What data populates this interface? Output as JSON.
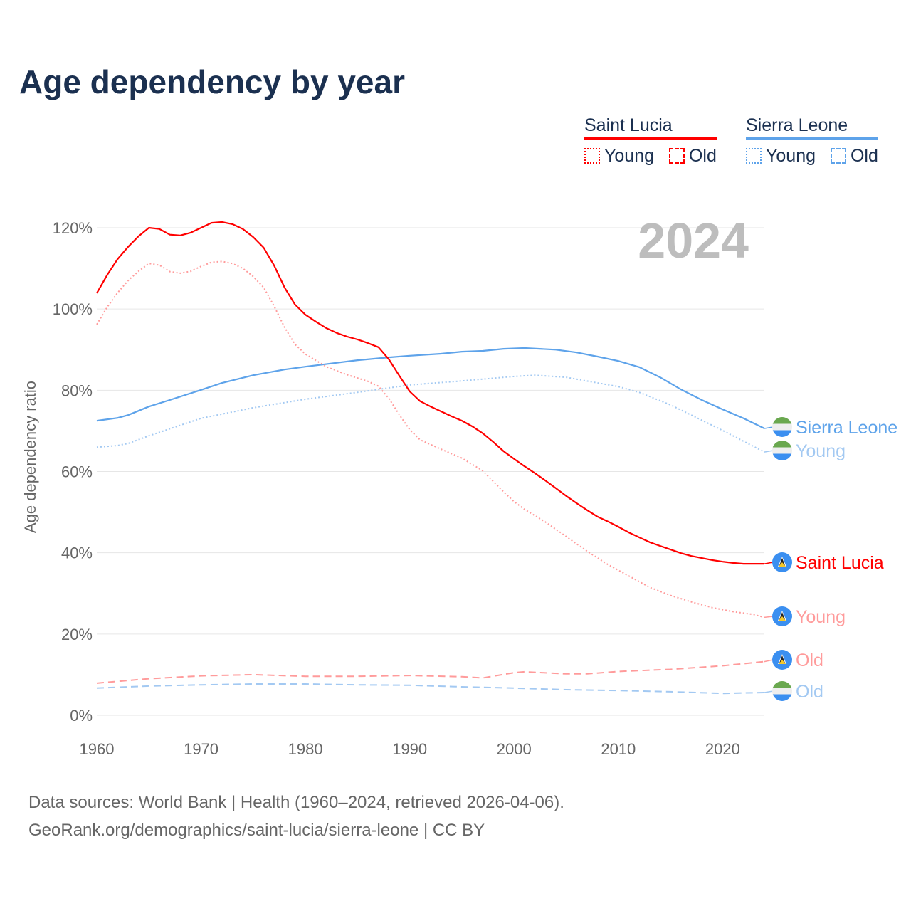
{
  "title": "Age dependency by year",
  "legend": {
    "groups": [
      {
        "name": "Saint Lucia",
        "color": "#ff0000",
        "items": [
          "Young",
          "Old"
        ]
      },
      {
        "name": "Sierra Leone",
        "color": "#5ea3ea",
        "items": [
          "Young",
          "Old"
        ]
      }
    ]
  },
  "source": {
    "line1": "Data sources: World Bank | Health (1960–2024, retrieved 2026-04-06).",
    "line2": "GeoRank.org/demographics/saint-lucia/sierra-leone | CC BY"
  },
  "chart_data": {
    "type": "line",
    "year_label": "2024",
    "ylabel": "Age dependency ratio",
    "xlim": [
      1960,
      2024
    ],
    "ylim": [
      0,
      120
    ],
    "xticks": [
      1960,
      1970,
      1980,
      1990,
      2000,
      2010,
      2020
    ],
    "yticks": [
      0,
      20,
      40,
      60,
      80,
      100,
      120
    ],
    "ytick_labels": [
      "0%",
      "20%",
      "40%",
      "60%",
      "80%",
      "100%",
      "120%"
    ],
    "grid": true,
    "series": [
      {
        "name": "Sierra Leone",
        "end_label": "Sierra Leone",
        "country": "sierra-leone",
        "color": "#5ea3ea",
        "dash": "solid",
        "x": [
          1960,
          1962,
          1963,
          1965,
          1967,
          1970,
          1972,
          1975,
          1978,
          1980,
          1985,
          1988,
          1990,
          1993,
          1995,
          1997,
          1999,
          2001,
          2004,
          2006,
          2008,
          2010,
          2012,
          2014,
          2016,
          2018,
          2020,
          2022,
          2024
        ],
        "y": [
          72.5,
          73.2,
          73.9,
          76.0,
          77.6,
          80.1,
          81.8,
          83.7,
          85.1,
          85.8,
          87.4,
          88.1,
          88.5,
          89.0,
          89.5,
          89.7,
          90.2,
          90.4,
          90.0,
          89.3,
          88.3,
          87.2,
          85.7,
          83.2,
          80.2,
          77.6,
          75.3,
          73.1,
          70.6
        ]
      },
      {
        "name": "Sierra Leone Young",
        "end_label": "Young",
        "country": "sierra-leone",
        "color": "#a3c9f2",
        "dash": "dotted",
        "x": [
          1960,
          1962,
          1963,
          1965,
          1970,
          1975,
          1980,
          1985,
          1990,
          1995,
          2000,
          2002,
          2005,
          2010,
          2012,
          2015,
          2020,
          2024
        ],
        "y": [
          66.0,
          66.4,
          66.9,
          68.8,
          73.1,
          75.7,
          77.8,
          79.5,
          81.3,
          82.3,
          83.4,
          83.7,
          83.2,
          80.9,
          79.5,
          76.4,
          70.1,
          64.8
        ]
      },
      {
        "name": "Saint Lucia",
        "end_label": "Saint Lucia",
        "country": "saint-lucia",
        "color": "#ff0000",
        "dash": "solid",
        "x": [
          1960,
          1961,
          1962,
          1963,
          1964,
          1965,
          1966,
          1967,
          1968,
          1969,
          1970,
          1971,
          1972,
          1973,
          1974,
          1975,
          1976,
          1977,
          1978,
          1979,
          1980,
          1981,
          1982,
          1983,
          1984,
          1985,
          1986,
          1987,
          1988,
          1989,
          1990,
          1991,
          1992,
          1993,
          1994,
          1995,
          1996,
          1997,
          1998,
          1999,
          2000,
          2001,
          2002,
          2003,
          2004,
          2005,
          2006,
          2007,
          2008,
          2009,
          2010,
          2011,
          2012,
          2013,
          2014,
          2015,
          2016,
          2017,
          2018,
          2019,
          2020,
          2021,
          2022,
          2023,
          2024
        ],
        "y": [
          103.9,
          108.4,
          112.3,
          115.3,
          117.9,
          120.0,
          119.7,
          118.3,
          118.1,
          118.8,
          120.0,
          121.2,
          121.4,
          120.9,
          119.7,
          117.7,
          115.1,
          110.7,
          105.3,
          101.1,
          98.6,
          96.9,
          95.3,
          94.1,
          93.2,
          92.5,
          91.6,
          90.6,
          87.6,
          83.6,
          79.7,
          77.3,
          76.0,
          74.8,
          73.6,
          72.5,
          71.1,
          69.4,
          67.3,
          65.0,
          63.1,
          61.3,
          59.6,
          57.8,
          55.9,
          54.0,
          52.2,
          50.5,
          48.9,
          47.7,
          46.4,
          45.0,
          43.8,
          42.6,
          41.7,
          40.8,
          39.9,
          39.2,
          38.7,
          38.2,
          37.8,
          37.5,
          37.3,
          37.3,
          37.3
        ]
      },
      {
        "name": "Saint Lucia Young",
        "end_label": "Young",
        "country": "saint-lucia",
        "color": "#ff9b9b",
        "dash": "dotted",
        "x": [
          1960,
          1961,
          1962,
          1963,
          1964,
          1965,
          1966,
          1967,
          1968,
          1969,
          1970,
          1971,
          1972,
          1973,
          1974,
          1975,
          1976,
          1977,
          1978,
          1979,
          1980,
          1982,
          1984,
          1986,
          1987,
          1988,
          1989,
          1990,
          1991,
          1993,
          1995,
          1997,
          1999,
          2000,
          2001,
          2003,
          2005,
          2007,
          2009,
          2011,
          2013,
          2015,
          2017,
          2019,
          2021,
          2023,
          2024
        ],
        "y": [
          96.2,
          100.5,
          104.0,
          107.0,
          109.3,
          111.2,
          110.8,
          109.2,
          108.8,
          109.3,
          110.5,
          111.5,
          111.7,
          111.2,
          110.0,
          108.0,
          105.3,
          100.7,
          95.5,
          91.3,
          88.9,
          85.8,
          83.8,
          82.2,
          81.0,
          78.0,
          74.0,
          70.3,
          67.8,
          65.5,
          63.3,
          60.2,
          55.0,
          52.6,
          50.7,
          47.6,
          44.0,
          40.4,
          37.1,
          34.3,
          31.5,
          29.5,
          27.9,
          26.5,
          25.5,
          24.8,
          24.1
        ]
      },
      {
        "name": "Saint Lucia Old",
        "end_label": "Old",
        "country": "saint-lucia",
        "color": "#ff9b9b",
        "dash": "dashed",
        "x": [
          1960,
          1965,
          1970,
          1975,
          1980,
          1985,
          1990,
          1995,
          1997,
          2000,
          2001,
          2005,
          2007,
          2010,
          2015,
          2020,
          2024
        ],
        "y": [
          7.9,
          9.0,
          9.7,
          10.0,
          9.6,
          9.6,
          9.8,
          9.5,
          9.2,
          10.5,
          10.7,
          10.2,
          10.2,
          10.8,
          11.3,
          12.2,
          13.2
        ]
      },
      {
        "name": "Sierra Leone Old",
        "end_label": "Old",
        "country": "sierra-leone",
        "color": "#a3c9f2",
        "dash": "dashed",
        "x": [
          1960,
          1965,
          1970,
          1975,
          1980,
          1985,
          1990,
          1995,
          2000,
          2005,
          2010,
          2015,
          2020,
          2024
        ],
        "y": [
          6.7,
          7.2,
          7.5,
          7.7,
          7.7,
          7.5,
          7.4,
          7.0,
          6.7,
          6.3,
          6.1,
          5.8,
          5.4,
          5.6
        ]
      }
    ]
  }
}
